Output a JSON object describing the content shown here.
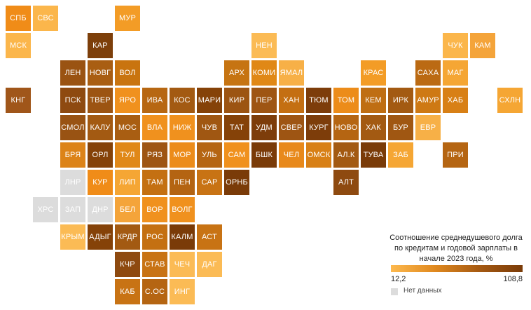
{
  "colors": {
    "nodata": "#dcdcdc",
    "low": "#fdb94e",
    "high": "#7a3b08"
  },
  "legend": {
    "title": "Соотношение среднедушевого долга по кредитам и годовой зарплаты в начале 2023 года, %",
    "min": "12,2",
    "max": "108,8",
    "nodata": "Нет данных"
  },
  "regions": [
    {
      "label": "СПБ",
      "col": 0,
      "row": 0,
      "color": "#f08c18"
    },
    {
      "label": "СВС",
      "col": 1,
      "row": 0,
      "color": "#fbb64b"
    },
    {
      "label": "МУР",
      "col": 4,
      "row": 0,
      "color": "#f39c26"
    },
    {
      "label": "МСК",
      "col": 0,
      "row": 1,
      "color": "#fbb64b"
    },
    {
      "label": "КАР",
      "col": 3,
      "row": 1,
      "color": "#7d3f0a"
    },
    {
      "label": "НЕН",
      "col": 9,
      "row": 1,
      "color": "#fbbb55"
    },
    {
      "label": "ЧУК",
      "col": 16,
      "row": 1,
      "color": "#fbb64b"
    },
    {
      "label": "КАМ",
      "col": 17,
      "row": 1,
      "color": "#f4a43a"
    },
    {
      "label": "ЛЕН",
      "col": 2,
      "row": 2,
      "color": "#9a5312"
    },
    {
      "label": "НОВГ",
      "col": 3,
      "row": 2,
      "color": "#a95e12"
    },
    {
      "label": "ВОЛ",
      "col": 4,
      "row": 2,
      "color": "#c9740f"
    },
    {
      "label": "АРХ",
      "col": 8,
      "row": 2,
      "color": "#c67412"
    },
    {
      "label": "КОМИ",
      "col": 9,
      "row": 2,
      "color": "#e08816"
    },
    {
      "label": "ЯМАЛ",
      "col": 10,
      "row": 2,
      "color": "#f7b047"
    },
    {
      "label": "КРАС",
      "col": 13,
      "row": 2,
      "color": "#f39c26"
    },
    {
      "label": "САХА",
      "col": 15,
      "row": 2,
      "color": "#bb6a13"
    },
    {
      "label": "МАГ",
      "col": 16,
      "row": 2,
      "color": "#f5a634"
    },
    {
      "label": "КНГ",
      "col": 0,
      "row": 3,
      "color": "#a0561a"
    },
    {
      "label": "ПСК",
      "col": 2,
      "row": 3,
      "color": "#8e4a10"
    },
    {
      "label": "ТВЕР",
      "col": 3,
      "row": 3,
      "color": "#9c5412"
    },
    {
      "label": "ЯРО",
      "col": 4,
      "row": 3,
      "color": "#f0911e"
    },
    {
      "label": "ИВА",
      "col": 5,
      "row": 3,
      "color": "#b76712"
    },
    {
      "label": "КОС",
      "col": 6,
      "row": 3,
      "color": "#a35a12"
    },
    {
      "label": "МАРИ",
      "col": 7,
      "row": 3,
      "color": "#854208"
    },
    {
      "label": "КИР",
      "col": 8,
      "row": 3,
      "color": "#9c5412"
    },
    {
      "label": "ПЕР",
      "col": 9,
      "row": 3,
      "color": "#9e5513"
    },
    {
      "label": "ХАН",
      "col": 10,
      "row": 3,
      "color": "#c46f12"
    },
    {
      "label": "ТЮМ",
      "col": 11,
      "row": 3,
      "color": "#7d3d0a"
    },
    {
      "label": "ТОМ",
      "col": 12,
      "row": 3,
      "color": "#ec8c1a"
    },
    {
      "label": "КЕМ",
      "col": 13,
      "row": 3,
      "color": "#bf6e13"
    },
    {
      "label": "ИРК",
      "col": 14,
      "row": 3,
      "color": "#a35a12"
    },
    {
      "label": "АМУР",
      "col": 15,
      "row": 3,
      "color": "#ce7914"
    },
    {
      "label": "ХАБ",
      "col": 16,
      "row": 3,
      "color": "#d88016"
    },
    {
      "label": "СХЛН",
      "col": 18,
      "row": 3,
      "color": "#f5a634"
    },
    {
      "label": "СМОЛ",
      "col": 2,
      "row": 4,
      "color": "#995313"
    },
    {
      "label": "КАЛУ",
      "col": 3,
      "row": 4,
      "color": "#a35a12"
    },
    {
      "label": "МОС",
      "col": 4,
      "row": 4,
      "color": "#a95e12"
    },
    {
      "label": "ВЛА",
      "col": 5,
      "row": 4,
      "color": "#f0911e"
    },
    {
      "label": "НИЖ",
      "col": 6,
      "row": 4,
      "color": "#f0911e"
    },
    {
      "label": "ЧУВ",
      "col": 7,
      "row": 4,
      "color": "#a05712"
    },
    {
      "label": "ТАТ",
      "col": 8,
      "row": 4,
      "color": "#854208"
    },
    {
      "label": "УДМ",
      "col": 9,
      "row": 4,
      "color": "#7d3d0a"
    },
    {
      "label": "СВЕР",
      "col": 10,
      "row": 4,
      "color": "#9e5513"
    },
    {
      "label": "КУРГ",
      "col": 11,
      "row": 4,
      "color": "#7d3d0a"
    },
    {
      "label": "НОВО",
      "col": 12,
      "row": 4,
      "color": "#b56512"
    },
    {
      "label": "ХАК",
      "col": 13,
      "row": 4,
      "color": "#a35a12"
    },
    {
      "label": "БУР",
      "col": 14,
      "row": 4,
      "color": "#a05712"
    },
    {
      "label": "ЕВР",
      "col": 15,
      "row": 4,
      "color": "#f7b047"
    },
    {
      "label": "БРЯ",
      "col": 2,
      "row": 5,
      "color": "#dc8318"
    },
    {
      "label": "ОРЛ",
      "col": 3,
      "row": 5,
      "color": "#854208"
    },
    {
      "label": "ТУЛ",
      "col": 4,
      "row": 5,
      "color": "#e08818"
    },
    {
      "label": "РЯЗ",
      "col": 5,
      "row": 5,
      "color": "#9e5513"
    },
    {
      "label": "МОР",
      "col": 6,
      "row": 5,
      "color": "#ec8c1a"
    },
    {
      "label": "УЛЬ",
      "col": 7,
      "row": 5,
      "color": "#b56512"
    },
    {
      "label": "САМ",
      "col": 8,
      "row": 5,
      "color": "#f0911e"
    },
    {
      "label": "БШК",
      "col": 9,
      "row": 5,
      "color": "#7a3b08"
    },
    {
      "label": "ЧЕЛ",
      "col": 10,
      "row": 5,
      "color": "#e8891b"
    },
    {
      "label": "ОМСК",
      "col": 11,
      "row": 5,
      "color": "#d88016"
    },
    {
      "label": "АЛ.К",
      "col": 12,
      "row": 5,
      "color": "#a35a12"
    },
    {
      "label": "ТУВА",
      "col": 13,
      "row": 5,
      "color": "#7a3b08"
    },
    {
      "label": "ЗАБ",
      "col": 14,
      "row": 5,
      "color": "#f5a634"
    },
    {
      "label": "ПРИ",
      "col": 16,
      "row": 5,
      "color": "#b56512"
    },
    {
      "label": "ЛНР",
      "col": 2,
      "row": 6,
      "nodata": true
    },
    {
      "label": "КУР",
      "col": 3,
      "row": 6,
      "color": "#f08c18"
    },
    {
      "label": "ЛИП",
      "col": 4,
      "row": 6,
      "color": "#f5a634"
    },
    {
      "label": "ТАМ",
      "col": 5,
      "row": 6,
      "color": "#c47012"
    },
    {
      "label": "ПЕН",
      "col": 6,
      "row": 6,
      "color": "#b46412"
    },
    {
      "label": "САР",
      "col": 7,
      "row": 6,
      "color": "#c87314"
    },
    {
      "label": "ОРНБ",
      "col": 8,
      "row": 6,
      "color": "#7a3b08"
    },
    {
      "label": "АЛТ",
      "col": 12,
      "row": 6,
      "color": "#8e4a10"
    },
    {
      "label": "ХРС",
      "col": 1,
      "row": 7,
      "nodata": true
    },
    {
      "label": "ЗАП",
      "col": 2,
      "row": 7,
      "nodata": true
    },
    {
      "label": "ДНР",
      "col": 3,
      "row": 7,
      "nodata": true
    },
    {
      "label": "БЕЛ",
      "col": 4,
      "row": 7,
      "color": "#f4a43a"
    },
    {
      "label": "ВОР",
      "col": 5,
      "row": 7,
      "color": "#f0911e"
    },
    {
      "label": "ВОЛГ",
      "col": 6,
      "row": 7,
      "color": "#f0911e"
    },
    {
      "label": "КРЫМ",
      "col": 2,
      "row": 8,
      "color": "#fbbb55"
    },
    {
      "label": "АДЫГ",
      "col": 3,
      "row": 8,
      "color": "#854208"
    },
    {
      "label": "КРДР",
      "col": 4,
      "row": 8,
      "color": "#a35a12"
    },
    {
      "label": "РОС",
      "col": 5,
      "row": 8,
      "color": "#c47012"
    },
    {
      "label": "КАЛМ",
      "col": 6,
      "row": 8,
      "color": "#7a3b08"
    },
    {
      "label": "АСТ",
      "col": 7,
      "row": 8,
      "color": "#c87314"
    },
    {
      "label": "КЧР",
      "col": 4,
      "row": 9,
      "color": "#8e4a10"
    },
    {
      "label": "СТАВ",
      "col": 5,
      "row": 9,
      "color": "#c87314"
    },
    {
      "label": "ЧЕЧ",
      "col": 6,
      "row": 9,
      "color": "#fbbb55"
    },
    {
      "label": "ДАГ",
      "col": 7,
      "row": 9,
      "color": "#fbbb55"
    },
    {
      "label": "КАБ",
      "col": 4,
      "row": 10,
      "color": "#c87314"
    },
    {
      "label": "С.ОС",
      "col": 5,
      "row": 10,
      "color": "#b56512"
    },
    {
      "label": "ИНГ",
      "col": 6,
      "row": 10,
      "color": "#fbbb55"
    }
  ]
}
